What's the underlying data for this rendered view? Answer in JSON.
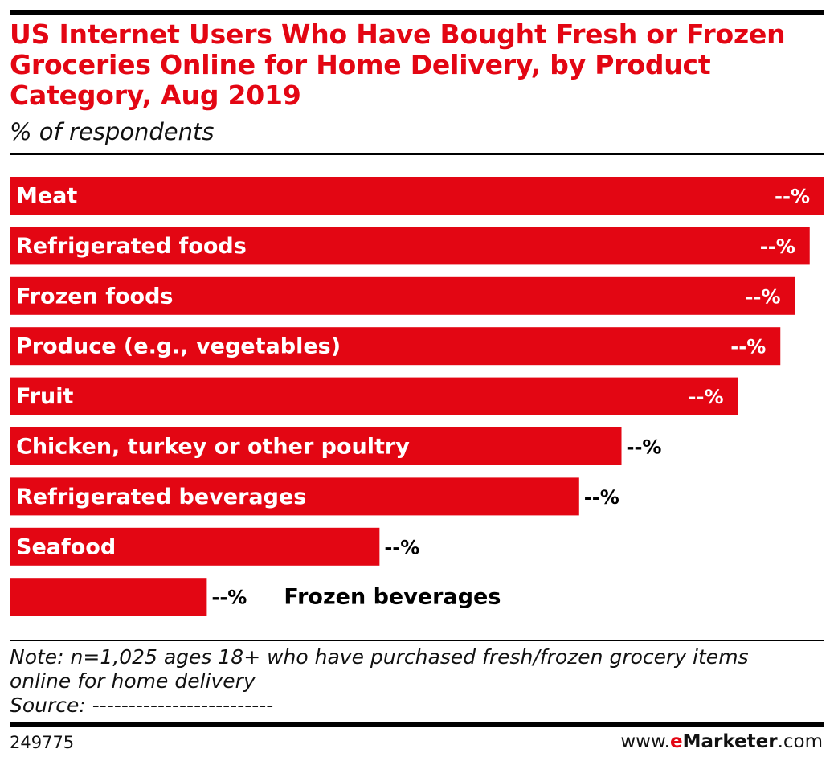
{
  "header": {
    "title": "US Internet Users Who Have Bought Fresh or Frozen Groceries Online for Home Delivery, by Product Category, Aug 2019",
    "subtitle": "% of respondents"
  },
  "chart_data": {
    "type": "bar",
    "orientation": "horizontal",
    "title": "US Internet Users Who Have Bought Fresh or Frozen Groceries Online for Home Delivery, by Product Category, Aug 2019",
    "subtitle": "% of respondents",
    "categories": [
      "Meat",
      "Refrigerated foods",
      "Frozen foods",
      "Produce (e.g., vegetables)",
      "Fruit",
      "Chicken, turkey or other poultry",
      "Refrigerated beverages",
      "Seafood",
      "Frozen beverages"
    ],
    "values": [
      100,
      98.2,
      96.4,
      94.6,
      89.4,
      75.1,
      69.9,
      45.4,
      24.2
    ],
    "value_labels": [
      "--%",
      "--%",
      "--%",
      "--%",
      "--%",
      "--%",
      "--%",
      "--%",
      "--%"
    ],
    "value_scale": "relative (actual percentages not shown)",
    "bar_color": "#e30613",
    "grid": false,
    "legend": "none"
  },
  "footer": {
    "note_lines": [
      "Note: n=1,025 ages 18+ who have purchased fresh/frozen grocery items",
      "online for home delivery"
    ],
    "source": "Source: -------------------------",
    "chart_id": "249775",
    "brand_prefix": "www.",
    "brand_e": "e",
    "brand_name": "Marketer",
    "brand_suffix": ".com"
  }
}
